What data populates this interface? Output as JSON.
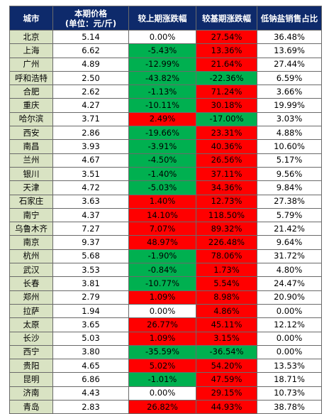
{
  "headers": [
    "城市",
    "本期价格\n(单位：元/斤)",
    "较上期涨跌幅",
    "较基期涨跌幅",
    "低钠盐销售占比"
  ],
  "colors": {
    "header_bg": "#0e2a6b",
    "city_bg": "#d9e3c3",
    "increase": "#ff0000",
    "decrease": "#00b050",
    "neutral": "#ffffff"
  },
  "rows": [
    {
      "city": "北京",
      "price": "5.14",
      "mom": "0.00%",
      "base": "27.54%",
      "share": "36.48%"
    },
    {
      "city": "上海",
      "price": "6.62",
      "mom": "-5.43%",
      "base": "13.36%",
      "share": "13.69%"
    },
    {
      "city": "广州",
      "price": "4.89",
      "mom": "-12.99%",
      "base": "21.64%",
      "share": "27.44%"
    },
    {
      "city": "呼和浩特",
      "price": "2.50",
      "mom": "-43.82%",
      "base": "-22.36%",
      "share": "6.59%"
    },
    {
      "city": "合肥",
      "price": "2.62",
      "mom": "-1.13%",
      "base": "71.24%",
      "share": "3.66%"
    },
    {
      "city": "重庆",
      "price": "4.27",
      "mom": "-10.11%",
      "base": "30.18%",
      "share": "19.99%"
    },
    {
      "city": "哈尔滨",
      "price": "3.71",
      "mom": "2.49%",
      "base": "-17.00%",
      "share": "3.03%"
    },
    {
      "city": "西安",
      "price": "2.86",
      "mom": "-19.66%",
      "base": "23.31%",
      "share": "4.88%"
    },
    {
      "city": "南昌",
      "price": "3.93",
      "mom": "-3.91%",
      "base": "40.36%",
      "share": "10.60%"
    },
    {
      "city": "兰州",
      "price": "4.67",
      "mom": "-4.50%",
      "base": "26.56%",
      "share": "5.17%"
    },
    {
      "city": "银川",
      "price": "3.51",
      "mom": "-1.40%",
      "base": "37.11%",
      "share": "9.56%"
    },
    {
      "city": "天津",
      "price": "4.72",
      "mom": "-5.03%",
      "base": "34.36%",
      "share": "9.84%"
    },
    {
      "city": "石家庄",
      "price": "3.63",
      "mom": "1.40%",
      "base": "12.73%",
      "share": "27.38%"
    },
    {
      "city": "南宁",
      "price": "4.37",
      "mom": "14.10%",
      "base": "118.50%",
      "share": "5.79%"
    },
    {
      "city": "乌鲁木齐",
      "price": "7.27",
      "mom": "7.07%",
      "base": "89.32%",
      "share": "21.42%"
    },
    {
      "city": "南京",
      "price": "9.37",
      "mom": "48.97%",
      "base": "226.48%",
      "share": "9.64%"
    },
    {
      "city": "杭州",
      "price": "5.68",
      "mom": "-1.90%",
      "base": "78.06%",
      "share": "31.72%"
    },
    {
      "city": "武汉",
      "price": "3.53",
      "mom": "-0.84%",
      "base": "1.73%",
      "share": "4.80%"
    },
    {
      "city": "长春",
      "price": "3.81",
      "mom": "-10.77%",
      "base": "5.54%",
      "share": "24.47%"
    },
    {
      "city": "郑州",
      "price": "2.79",
      "mom": "1.09%",
      "base": "8.98%",
      "share": "20.90%"
    },
    {
      "city": "拉萨",
      "price": "1.94",
      "mom": "0.00%",
      "base": "4.86%",
      "share": "0.00%"
    },
    {
      "city": "太原",
      "price": "3.65",
      "mom": "26.77%",
      "base": "45.11%",
      "share": "12.12%"
    },
    {
      "city": "长沙",
      "price": "5.03",
      "mom": "1.09%",
      "base": "3.15%",
      "share": "0.00%"
    },
    {
      "city": "西宁",
      "price": "3.80",
      "mom": "-35.59%",
      "base": "-36.54%",
      "share": "0.00%"
    },
    {
      "city": "贵阳",
      "price": "4.65",
      "mom": "5.02%",
      "base": "54.20%",
      "share": "13.53%"
    },
    {
      "city": "昆明",
      "price": "6.86",
      "mom": "-1.01%",
      "base": "47.59%",
      "share": "18.71%"
    },
    {
      "city": "济南",
      "price": "4.43",
      "mom": "0.00%",
      "base": "29.15%",
      "share": "10.73%"
    },
    {
      "city": "青岛",
      "price": "2.83",
      "mom": "26.82%",
      "base": "44.93%",
      "share": "38.78%"
    }
  ]
}
